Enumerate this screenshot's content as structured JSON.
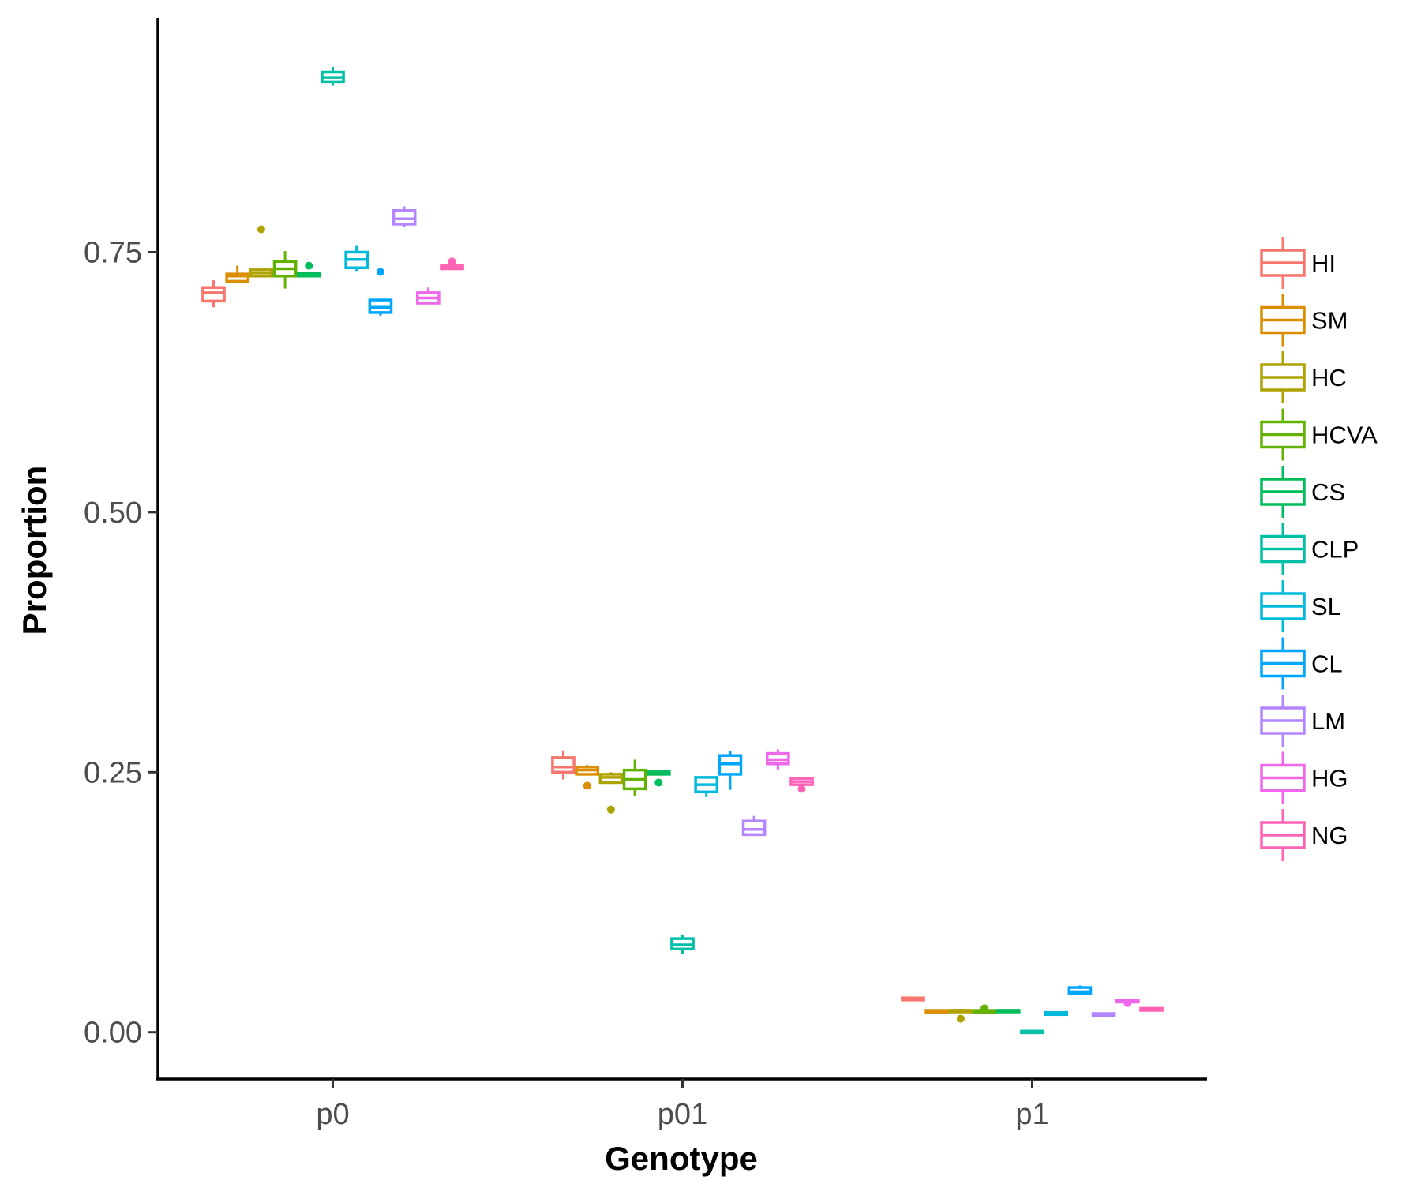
{
  "chart_data": {
    "type": "boxplot",
    "xlabel": "Genotype",
    "ylabel": "Proportion",
    "categories": [
      "p0",
      "p01",
      "p1"
    ],
    "ylim": [
      -0.045,
      0.975
    ],
    "y_ticks": [
      0.0,
      0.25,
      0.5,
      0.75
    ],
    "y_tick_labels": [
      "0.00",
      "0.25",
      "0.50",
      "0.75"
    ],
    "grid": false,
    "legend_position": "right",
    "series": [
      {
        "name": "HI",
        "color": "#F8766D",
        "boxes": [
          {
            "min": 0.697,
            "q1": 0.703,
            "median": 0.711,
            "q3": 0.716,
            "max": 0.723,
            "outliers": []
          },
          {
            "min": 0.243,
            "q1": 0.25,
            "median": 0.255,
            "q3": 0.264,
            "max": 0.271,
            "outliers": []
          },
          {
            "min": 0.031,
            "q1": 0.031,
            "median": 0.032,
            "q3": 0.033,
            "max": 0.033,
            "outliers": []
          }
        ]
      },
      {
        "name": "SM",
        "color": "#DB8E00",
        "boxes": [
          {
            "min": 0.722,
            "q1": 0.722,
            "median": 0.727,
            "q3": 0.729,
            "max": 0.737,
            "outliers": []
          },
          {
            "min": 0.248,
            "q1": 0.248,
            "median": 0.252,
            "q3": 0.255,
            "max": 0.257,
            "outliers": [
              0.237
            ]
          },
          {
            "min": 0.019,
            "q1": 0.019,
            "median": 0.02,
            "q3": 0.021,
            "max": 0.021,
            "outliers": []
          }
        ]
      },
      {
        "name": "HC",
        "color": "#AEA200",
        "boxes": [
          {
            "min": 0.726,
            "q1": 0.727,
            "median": 0.73,
            "q3": 0.733,
            "max": 0.733,
            "outliers": [
              0.772
            ]
          },
          {
            "min": 0.24,
            "q1": 0.24,
            "median": 0.245,
            "q3": 0.248,
            "max": 0.25,
            "outliers": [
              0.214
            ]
          },
          {
            "min": 0.02,
            "q1": 0.02,
            "median": 0.021,
            "q3": 0.021,
            "max": 0.021,
            "outliers": [
              0.013
            ]
          }
        ]
      },
      {
        "name": "HCVA",
        "color": "#64B200",
        "boxes": [
          {
            "min": 0.715,
            "q1": 0.727,
            "median": 0.734,
            "q3": 0.741,
            "max": 0.751,
            "outliers": []
          },
          {
            "min": 0.227,
            "q1": 0.234,
            "median": 0.243,
            "q3": 0.252,
            "max": 0.262,
            "outliers": []
          },
          {
            "min": 0.019,
            "q1": 0.019,
            "median": 0.02,
            "q3": 0.021,
            "max": 0.021,
            "outliers": [
              0.023
            ]
          }
        ]
      },
      {
        "name": "CS",
        "color": "#00BD5C",
        "boxes": [
          {
            "min": 0.727,
            "q1": 0.727,
            "median": 0.729,
            "q3": 0.73,
            "max": 0.73,
            "outliers": [
              0.737
            ]
          },
          {
            "min": 0.248,
            "q1": 0.248,
            "median": 0.25,
            "q3": 0.251,
            "max": 0.251,
            "outliers": [
              0.24
            ]
          },
          {
            "min": 0.02,
            "q1": 0.02,
            "median": 0.021,
            "q3": 0.021,
            "max": 0.021,
            "outliers": []
          }
        ]
      },
      {
        "name": "CLP",
        "color": "#00C1A7",
        "boxes": [
          {
            "min": 0.91,
            "q1": 0.914,
            "median": 0.918,
            "q3": 0.923,
            "max": 0.928,
            "outliers": []
          },
          {
            "min": 0.075,
            "q1": 0.08,
            "median": 0.084,
            "q3": 0.09,
            "max": 0.094,
            "outliers": []
          },
          {
            "min": 0.0,
            "q1": 0.0,
            "median": 0.001,
            "q3": 0.001,
            "max": 0.001,
            "outliers": []
          }
        ]
      },
      {
        "name": "SL",
        "color": "#00BADE",
        "boxes": [
          {
            "min": 0.732,
            "q1": 0.735,
            "median": 0.743,
            "q3": 0.75,
            "max": 0.756,
            "outliers": []
          },
          {
            "min": 0.226,
            "q1": 0.231,
            "median": 0.238,
            "q3": 0.245,
            "max": 0.246,
            "outliers": []
          },
          {
            "min": 0.017,
            "q1": 0.017,
            "median": 0.018,
            "q3": 0.019,
            "max": 0.019,
            "outliers": []
          }
        ]
      },
      {
        "name": "CL",
        "color": "#00A6FF",
        "boxes": [
          {
            "min": 0.689,
            "q1": 0.692,
            "median": 0.697,
            "q3": 0.704,
            "max": 0.704,
            "outliers": [
              0.731
            ]
          },
          {
            "min": 0.233,
            "q1": 0.248,
            "median": 0.258,
            "q3": 0.266,
            "max": 0.27,
            "outliers": []
          },
          {
            "min": 0.037,
            "q1": 0.037,
            "median": 0.039,
            "q3": 0.043,
            "max": 0.045,
            "outliers": []
          }
        ]
      },
      {
        "name": "LM",
        "color": "#B385FF",
        "boxes": [
          {
            "min": 0.774,
            "q1": 0.777,
            "median": 0.782,
            "q3": 0.79,
            "max": 0.794,
            "outliers": []
          },
          {
            "min": 0.19,
            "q1": 0.19,
            "median": 0.195,
            "q3": 0.203,
            "max": 0.208,
            "outliers": []
          },
          {
            "min": 0.016,
            "q1": 0.016,
            "median": 0.017,
            "q3": 0.018,
            "max": 0.018,
            "outliers": []
          }
        ]
      },
      {
        "name": "HG",
        "color": "#EF67EB",
        "boxes": [
          {
            "min": 0.701,
            "q1": 0.701,
            "median": 0.706,
            "q3": 0.711,
            "max": 0.716,
            "outliers": []
          },
          {
            "min": 0.252,
            "q1": 0.258,
            "median": 0.262,
            "q3": 0.268,
            "max": 0.272,
            "outliers": []
          },
          {
            "min": 0.028,
            "q1": 0.029,
            "median": 0.03,
            "q3": 0.031,
            "max": 0.031,
            "outliers": [
              0.028
            ]
          }
        ]
      },
      {
        "name": "NG",
        "color": "#FF63B6",
        "boxes": [
          {
            "min": 0.734,
            "q1": 0.734,
            "median": 0.735,
            "q3": 0.737,
            "max": 0.737,
            "outliers": [
              0.741
            ]
          },
          {
            "min": 0.238,
            "q1": 0.238,
            "median": 0.241,
            "q3": 0.244,
            "max": 0.244,
            "outliers": [
              0.234
            ]
          },
          {
            "min": 0.021,
            "q1": 0.021,
            "median": 0.022,
            "q3": 0.023,
            "max": 0.023,
            "outliers": []
          }
        ]
      }
    ]
  }
}
